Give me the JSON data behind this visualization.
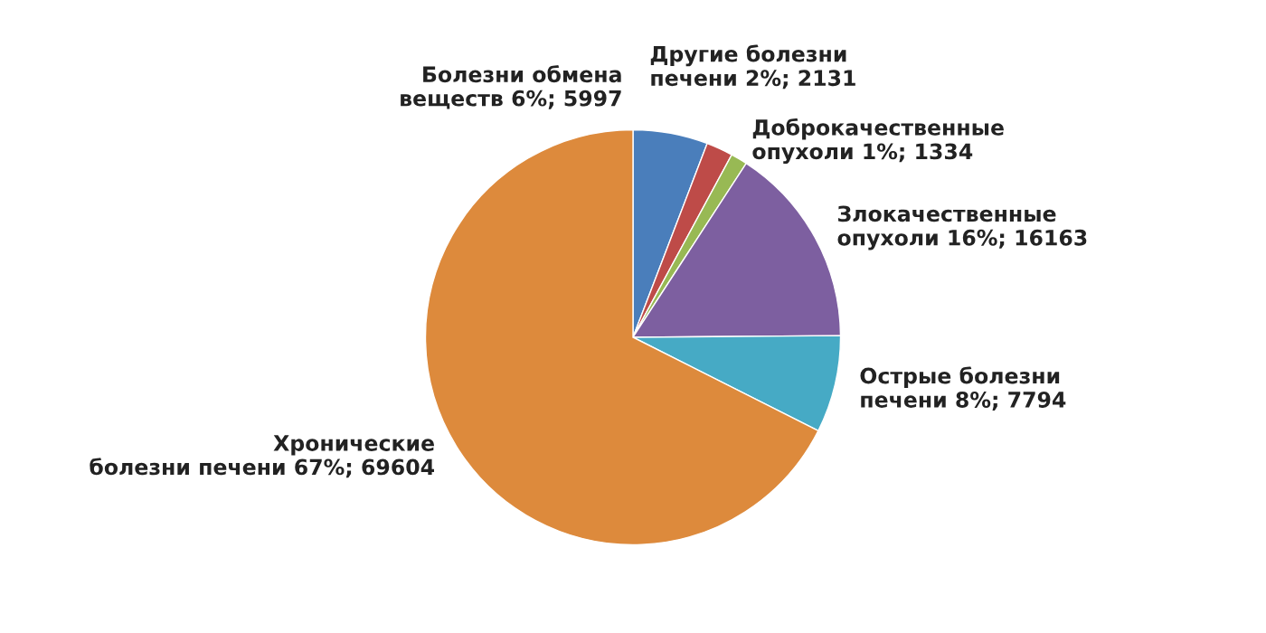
{
  "chart_data": {
    "type": "pie",
    "categories": [
      "Болезни обмена\nвеществ",
      "Другие болезни\nпечени",
      "Доброкачественные\nопухоли",
      "Злокачественные\nопухоли",
      "Острые болезни\nпечени",
      "Хронические\nболезни печени"
    ],
    "values": [
      5997,
      2131,
      1334,
      16163,
      7794,
      69604
    ],
    "value_labels": [
      "6%; 5997",
      "2%; 2131",
      "1%; 1334",
      "16%; 16163",
      "8%; 7794",
      "67%; 69604"
    ],
    "colors": [
      "#4a7ebb",
      "#be4b48",
      "#98b954",
      "#7d5fa0",
      "#46aac5",
      "#dd8a3c"
    ],
    "legend": false
  }
}
